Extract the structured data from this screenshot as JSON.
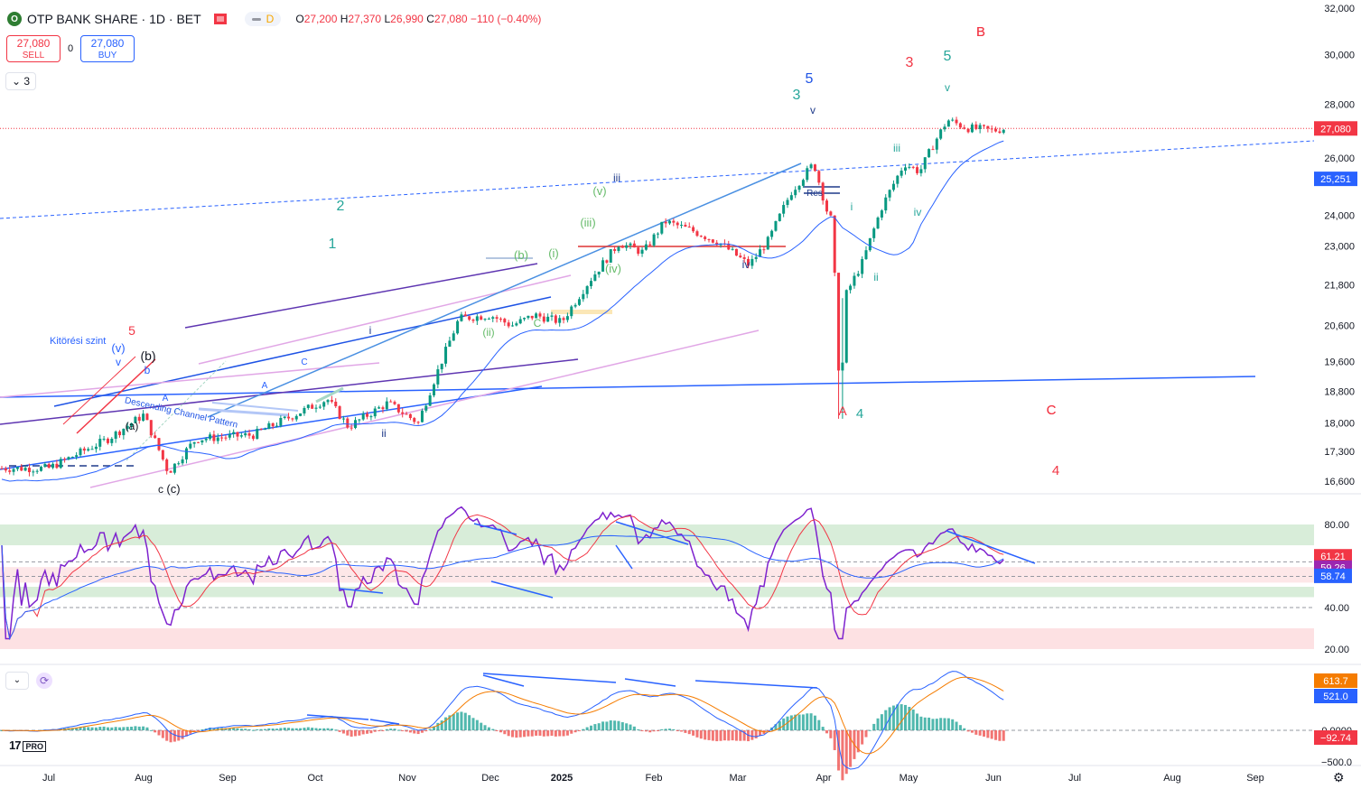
{
  "header": {
    "symbol": "OTP BANK SHARE · 1D · BET",
    "logo_letter": "O",
    "pill_letter": "D",
    "ohlc": {
      "o_label": "O",
      "o": "27,200",
      "h_label": "H",
      "h": "27,370",
      "l_label": "L",
      "l": "26,990",
      "c_label": "C",
      "c": "27,080",
      "change": "−110 (−0.40%)"
    }
  },
  "trade": {
    "sell_price": "27,080",
    "sell_label": "SELL",
    "spread": "0",
    "buy_price": "27,080",
    "buy_label": "BUY"
  },
  "collapse_label": "⌄ 3",
  "colors": {
    "up": "#089981",
    "down": "#f23645",
    "ma": "#2962ff",
    "rsi": "#7e22ce",
    "rsi_ma": "#f23645",
    "macd": "#2962ff",
    "signal": "#f57c00"
  },
  "icons": {
    "collapse": "chevron-down-icon",
    "refresh": "refresh-icon",
    "settings": "gear-icon",
    "logo": "tradingview-logo-icon"
  },
  "chart_data": [
    {
      "type": "candlestick",
      "pane": "price",
      "x_ticks": [
        "Jul",
        "Aug",
        "Sep",
        "Oct",
        "Nov",
        "Dec",
        "2025",
        "Feb",
        "Mar",
        "Apr",
        "May",
        "Jun",
        "Jul",
        "Aug",
        "Sep"
      ],
      "y_ticks": [
        "32,000",
        "30,000",
        "28,000",
        "26,000",
        "24,000",
        "23,000",
        "21,800",
        "20,600",
        "19,600",
        "18,800",
        "18,000",
        "17,300",
        "16,600"
      ],
      "path_points": [
        [
          "Jul-01",
          16900
        ],
        [
          "Jul-20",
          17600
        ],
        [
          "Aug-01",
          18200
        ],
        [
          "Aug-10",
          16800
        ],
        [
          "Aug-20",
          17600
        ],
        [
          "Sep-10",
          17700
        ],
        [
          "Oct-05",
          18600
        ],
        [
          "Oct-12",
          17900
        ],
        [
          "Oct-25",
          18500
        ],
        [
          "Nov-05",
          18000
        ],
        [
          "Nov-20",
          20800
        ],
        [
          "Dec-01",
          20900
        ],
        [
          "Dec-10",
          20600
        ],
        [
          "Dec-20",
          20900
        ],
        [
          "Jan-01",
          20700
        ],
        [
          "Jan-10",
          21900
        ],
        [
          "Jan-20",
          23100
        ],
        [
          "Jan-28",
          22800
        ],
        [
          "Feb-05",
          23800
        ],
        [
          "Feb-15",
          23500
        ],
        [
          "Feb-25",
          23100
        ],
        [
          "Mar-05",
          22400
        ],
        [
          "Mar-12",
          23200
        ],
        [
          "Mar-20",
          24800
        ],
        [
          "Mar-28",
          25800
        ],
        [
          "Apr-02",
          24200
        ],
        [
          "Apr-04",
          23800
        ],
        [
          "Apr-07",
          18300
        ],
        [
          "Apr-09",
          21500
        ],
        [
          "Apr-15",
          22500
        ],
        [
          "Apr-22",
          24300
        ],
        [
          "Apr-30",
          25800
        ],
        [
          "May-05",
          25500
        ],
        [
          "May-10",
          26500
        ],
        [
          "May-15",
          27400
        ],
        [
          "May-22",
          27100
        ],
        [
          "Jun-01",
          27000
        ],
        [
          "Jun-05",
          27080
        ]
      ],
      "last_price": "27,080",
      "ma_label": "25,251",
      "annotations": [
        "Kitörési szint",
        "(v)",
        "v",
        "5",
        "(b)",
        "b",
        "(a)",
        "A",
        "B",
        "C",
        "c",
        "(c)",
        "Descending Channel Pattern",
        "A",
        "i",
        "C",
        "ii",
        "2",
        "1",
        "(b)",
        "(i)",
        "(iii)",
        "(v)",
        "iii",
        "(iv)",
        "(ii)",
        "C",
        "3",
        "5",
        "v",
        "Res",
        "iv",
        "4",
        "A",
        "i",
        "ii",
        "iii",
        "iv",
        "v",
        "5",
        "3",
        "B",
        "C",
        "4"
      ]
    },
    {
      "type": "line",
      "pane": "rsi",
      "y_ticks": [
        "80.00",
        "40.00",
        "20.00"
      ],
      "value_labels": [
        "61.21",
        "59.26",
        "58.74"
      ],
      "bands": [
        [
          70,
          80
        ],
        [
          45,
          50
        ],
        [
          20,
          30
        ]
      ]
    },
    {
      "type": "histogram+line",
      "pane": "macd",
      "y_ticks": [
        "0.0000",
        "−500.0"
      ],
      "value_labels": [
        "613.7",
        "521.0",
        "−92.74"
      ]
    }
  ]
}
